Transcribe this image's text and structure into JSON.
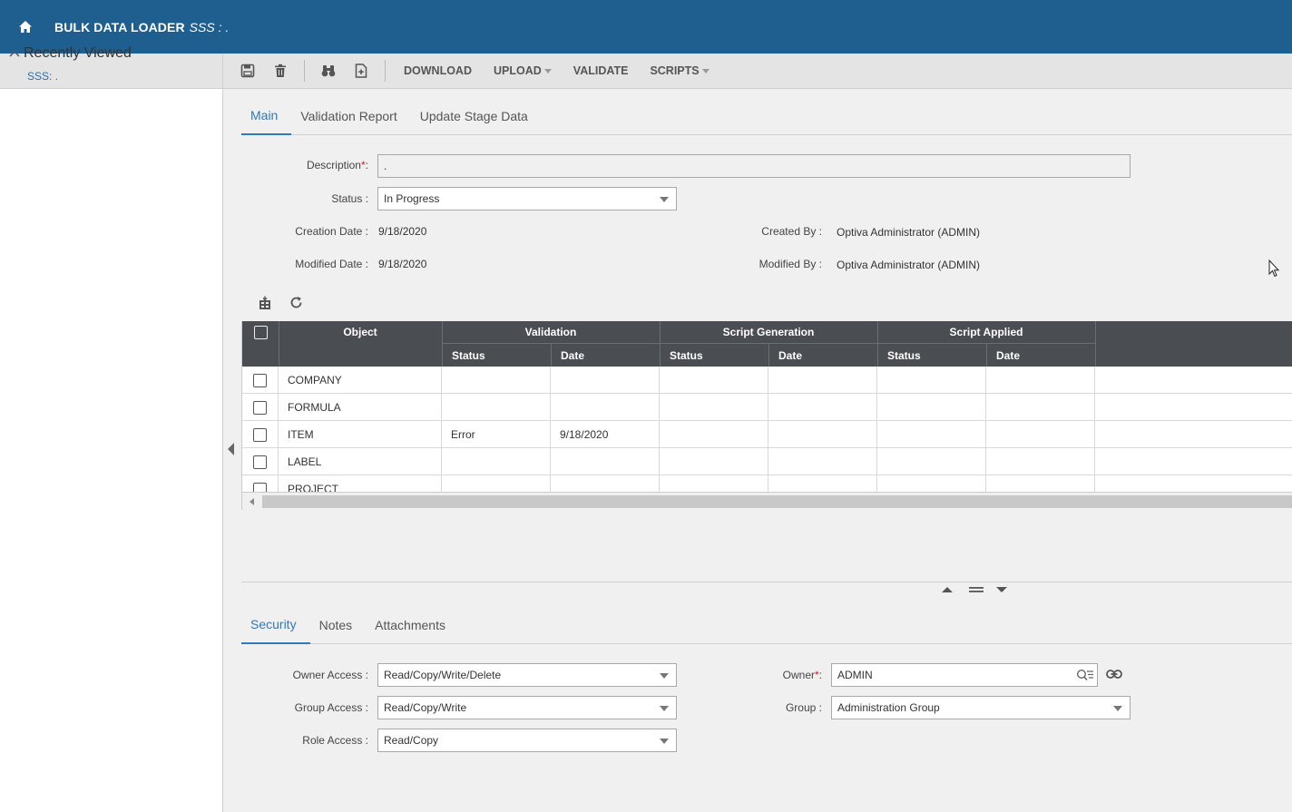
{
  "header": {
    "title": "BULK DATA LOADER",
    "subtitle": "SSS : ."
  },
  "sidebar": {
    "recently_viewed_label": "Recently Viewed",
    "items": [
      {
        "label": "SSS: ."
      }
    ]
  },
  "toolbar": {
    "download_label": "DOWNLOAD",
    "upload_label": "UPLOAD",
    "validate_label": "VALIDATE",
    "scripts_label": "SCRIPTS"
  },
  "main_tabs": [
    {
      "label": "Main",
      "active": true
    },
    {
      "label": "Validation Report",
      "active": false
    },
    {
      "label": "Update Stage Data",
      "active": false
    }
  ],
  "form": {
    "description_label": "Description",
    "description_value": ".",
    "status_label": "Status :",
    "status_value": "In Progress",
    "creation_date_label": "Creation Date :",
    "creation_date_value": "9/18/2020",
    "modified_date_label": "Modified Date :",
    "modified_date_value": "9/18/2020",
    "created_by_label": "Created By :",
    "created_by_value": "Optiva Administrator (ADMIN)",
    "modified_by_label": "Modified By :",
    "modified_by_value": "Optiva Administrator (ADMIN)"
  },
  "grid": {
    "headers": {
      "object": "Object",
      "validation": "Validation",
      "script_generation": "Script Generation",
      "script_applied": "Script Applied",
      "status": "Status",
      "date": "Date"
    },
    "rows": [
      {
        "object": "COMPANY",
        "val_status": "",
        "val_date": ""
      },
      {
        "object": "FORMULA",
        "val_status": "",
        "val_date": ""
      },
      {
        "object": "ITEM",
        "val_status": "Error",
        "val_date": "9/18/2020"
      },
      {
        "object": "LABEL",
        "val_status": "",
        "val_date": ""
      },
      {
        "object": "PROJECT",
        "val_status": "",
        "val_date": ""
      }
    ]
  },
  "bottom_tabs": [
    {
      "label": "Security",
      "active": true
    },
    {
      "label": "Notes",
      "active": false
    },
    {
      "label": "Attachments",
      "active": false
    }
  ],
  "security": {
    "owner_access_label": "Owner Access :",
    "owner_access_value": "Read/Copy/Write/Delete",
    "group_access_label": "Group Access :",
    "group_access_value": "Read/Copy/Write",
    "role_access_label": "Role Access :",
    "role_access_value": "Read/Copy",
    "owner_label": "Owner",
    "owner_value": "ADMIN",
    "group_label": "Group :",
    "group_value": "Administration Group"
  },
  "colors": {
    "header_bg": "#1f5f8f",
    "accent": "#2f7ab8",
    "grid_header": "#4a4d51",
    "required": "#d02020"
  }
}
